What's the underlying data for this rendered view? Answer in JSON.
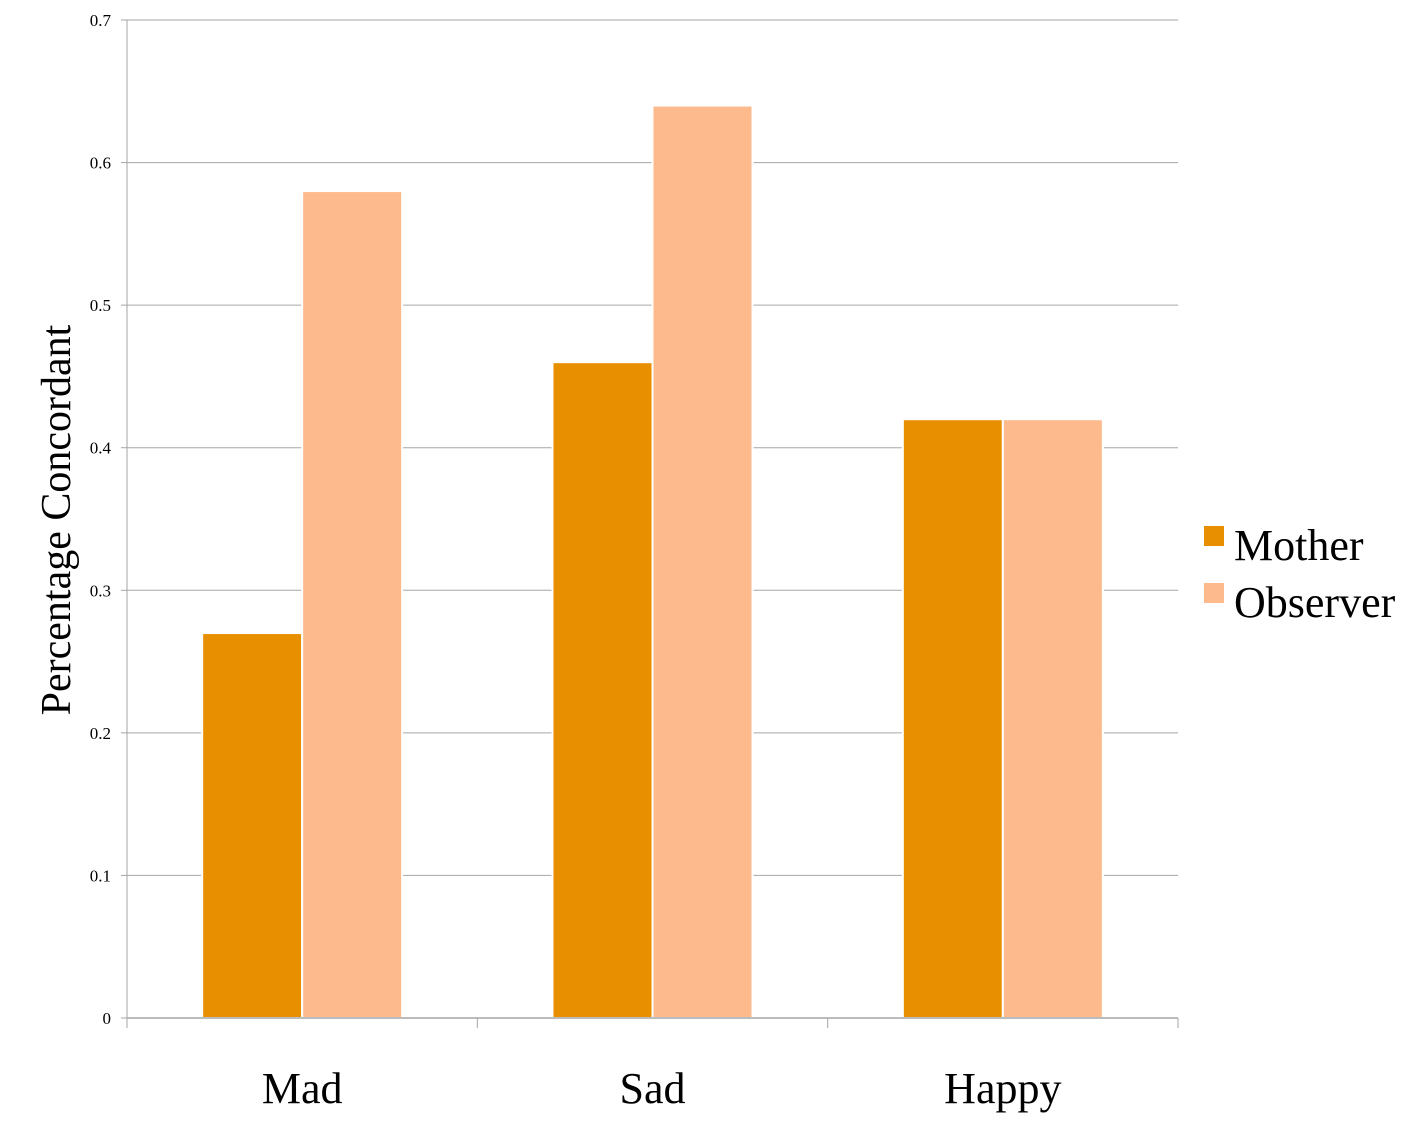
{
  "chart_data": {
    "type": "bar",
    "categories": [
      "Mad",
      "Sad",
      "Happy"
    ],
    "series": [
      {
        "name": "Mother",
        "values": [
          0.27,
          0.46,
          0.42
        ],
        "color": "#E88F00"
      },
      {
        "name": "Observer",
        "values": [
          0.58,
          0.64,
          0.42
        ],
        "color": "#FDBB8D"
      }
    ],
    "ylabel": "Percentage Concordant",
    "xlabel": "",
    "ylim": [
      0,
      0.7
    ],
    "yticks": [
      "0",
      "0.1",
      "0.2",
      "0.3",
      "0.4",
      "0.5",
      "0.6",
      "0.7"
    ],
    "grid": true,
    "legend_position": "right"
  }
}
